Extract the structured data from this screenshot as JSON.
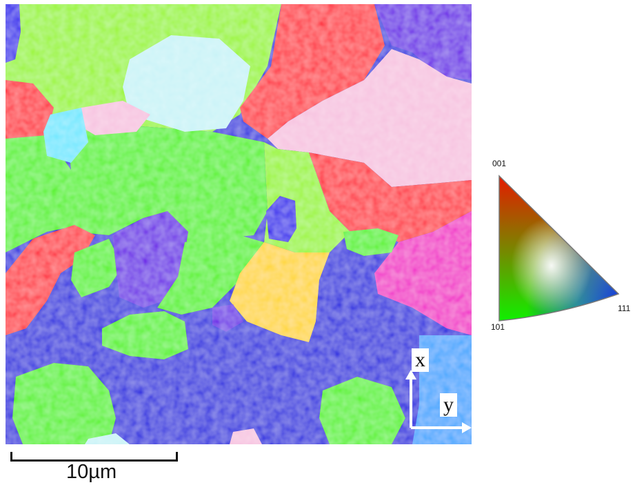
{
  "map": {
    "colors": {
      "blue": "#1f1fe0",
      "deep_blue": "#2a10ee",
      "green": "#55f21a",
      "lime": "#9af52a",
      "red": "#ff2d3c",
      "magenta": "#f21ec8",
      "pink": "#f7c3e0",
      "cyan": "#6fe8ff",
      "light_cyan": "#c9f3f7",
      "yellow": "#ffd62a",
      "violet": "#6a18e8",
      "light_blue": "#3da6ff"
    }
  },
  "axes": {
    "x_label": "x",
    "y_label": "y"
  },
  "scalebar": {
    "label": "10µm"
  },
  "ipf_key": {
    "corner_001": "001",
    "corner_101": "101",
    "corner_111": "111"
  }
}
